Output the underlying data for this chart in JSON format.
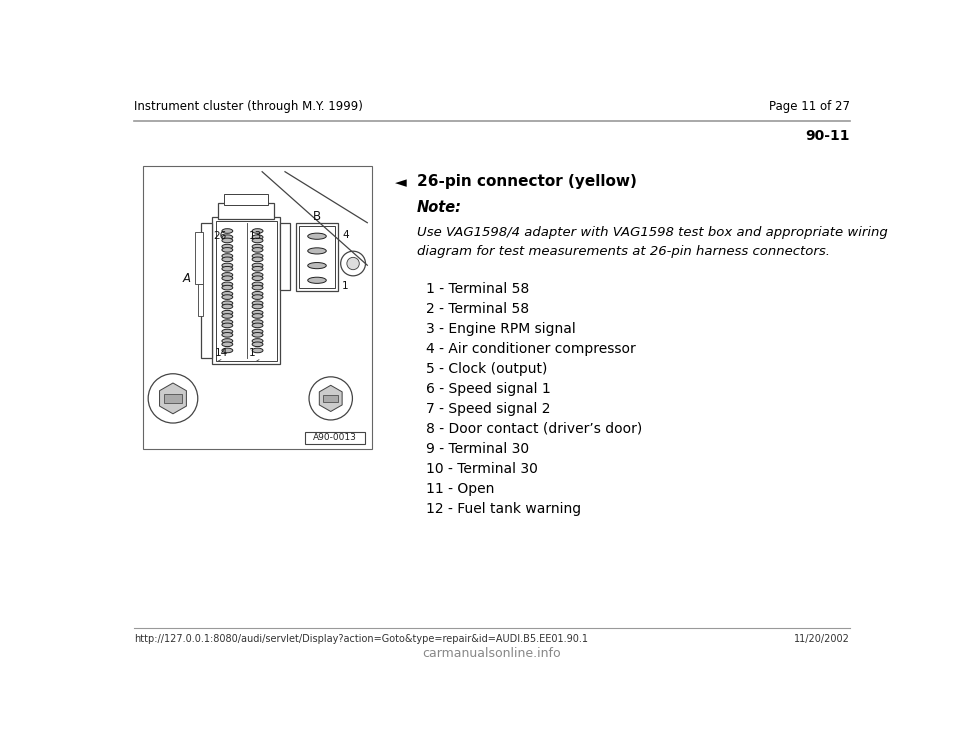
{
  "header_left": "Instrument cluster (through M.Y. 1999)",
  "header_right": "Page 11 of 27",
  "section_number": "90-11",
  "connector_title": "26-pin connector (yellow)",
  "note_label": "Note:",
  "note_text": "Use VAG1598/4 adapter with VAG1598 test box and appropriate wiring\ndiagram for test measurements at 26-pin harness connectors.",
  "pin_list": [
    "1 - Terminal 58",
    "2 - Terminal 58",
    "3 - Engine RPM signal",
    "4 - Air conditioner compressor",
    "5 - Clock (output)",
    "6 - Speed signal 1",
    "7 - Speed signal 2",
    "8 - Door contact (driver’s door)",
    "9 - Terminal 30",
    "10 - Terminal 30",
    "11 - Open",
    "12 - Fuel tank warning"
  ],
  "footer_url": "http://127.0.0.1:8080/audi/servlet/Display?action=Goto&type=repair&id=AUDI.B5.EE01.90.1",
  "footer_right": "11/20/2002",
  "footer_site": "carmanualsonline.info",
  "bg_color": "#ffffff",
  "text_color": "#000000",
  "header_line_color": "#999999",
  "image_label": "A90-0013",
  "diagram_bg": "#f5f5f5",
  "line_color": "#444444"
}
